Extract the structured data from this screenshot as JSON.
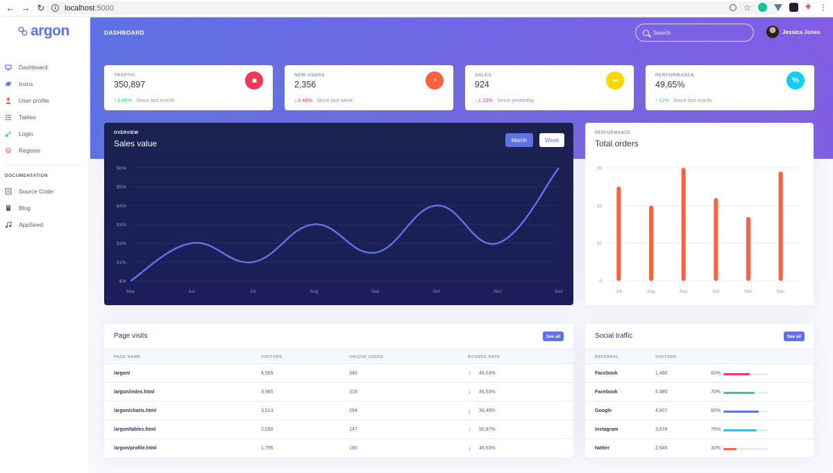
{
  "browser": {
    "url_host": "localhost",
    "url_port": ":5000"
  },
  "brand": {
    "name": "argon"
  },
  "sidebar": {
    "items": [
      {
        "label": "Dashboard",
        "icon": "tv-icon",
        "color": "#5e72e4"
      },
      {
        "label": "Icons",
        "icon": "planet-icon",
        "color": "#5e72e4"
      },
      {
        "label": "User profile",
        "icon": "user-icon",
        "color": "#fb6340"
      },
      {
        "label": "Tables",
        "icon": "bullet-list-icon",
        "color": "#f5365c"
      },
      {
        "label": "Login",
        "icon": "key-icon",
        "color": "#11cdef"
      },
      {
        "label": "Register",
        "icon": "circle-user-icon",
        "color": "#f3a4b5"
      }
    ],
    "doc_heading": "DOCUMENTATION",
    "doc_items": [
      {
        "label": "Source Code",
        "icon": "code-icon"
      },
      {
        "label": "Blog",
        "icon": "book-icon"
      },
      {
        "label": "AppSeed",
        "icon": "music-icon"
      }
    ]
  },
  "header": {
    "title": "DASHBOARD",
    "search_placeholder": "Search",
    "user_name": "Jessica Jones"
  },
  "stats": [
    {
      "title": "TRAFFIC",
      "value": "350,897",
      "change": "3.48%",
      "direction": "up",
      "since": "Since last month",
      "icon": "chart-bar-icon",
      "color": "#f5365c"
    },
    {
      "title": "NEW USERS",
      "value": "2,356",
      "change": "3.48%",
      "direction": "down",
      "since": "Since last week",
      "icon": "chart-pie-icon",
      "color": "#fb6340"
    },
    {
      "title": "SALES",
      "value": "924",
      "change": "1.10%",
      "direction": "down",
      "since": "Since yesterday",
      "icon": "users-icon",
      "color": "#ffd600"
    },
    {
      "title": "PERFORMANCE",
      "value": "49,65%",
      "change": "12%",
      "direction": "up",
      "since": "Since last month",
      "icon": "percent-icon",
      "color": "#11cdef"
    }
  ],
  "overview": {
    "subtitle": "OVERVIEW",
    "title": "Sales value",
    "btn_month": "Month",
    "btn_week": "Week"
  },
  "performance": {
    "subtitle": "PERFORMANCE",
    "title": "Total orders"
  },
  "chart_data": [
    {
      "type": "line",
      "title": "Sales value",
      "categories": [
        "May",
        "Jun",
        "Jul",
        "Aug",
        "Sep",
        "Oct",
        "Nov",
        "Dec"
      ],
      "series": [
        {
          "values": [
            0,
            20,
            10,
            30,
            15,
            40,
            20,
            60
          ]
        }
      ],
      "yticks": [
        "$0k",
        "$10k",
        "$20k",
        "$30k",
        "$40k",
        "$50k",
        "$60k"
      ],
      "ylim": [
        0,
        60
      ],
      "color": "#5e72e4"
    },
    {
      "type": "bar",
      "title": "Total orders",
      "categories": [
        "Jul",
        "Aug",
        "Sep",
        "Oct",
        "Nov",
        "Dec"
      ],
      "values": [
        25,
        20,
        30,
        22,
        17,
        29
      ],
      "yticks": [
        "0",
        "10",
        "20",
        "30"
      ],
      "ylim": [
        0,
        30
      ],
      "color": "#fb6340"
    }
  ],
  "page_visits": {
    "title": "Page visits",
    "see_all": "See all",
    "columns": [
      "PAGE NAME",
      "VISITORS",
      "UNIQUE USERS",
      "BOUNCE RATE"
    ],
    "rows": [
      {
        "page": "/argon/",
        "visitors": "4,569",
        "unique": "340",
        "bounce": "46,53%",
        "dir": "up"
      },
      {
        "page": "/argon/index.html",
        "visitors": "3,985",
        "unique": "319",
        "bounce": "46,53%",
        "dir": "down"
      },
      {
        "page": "/argon/charts.html",
        "visitors": "3,513",
        "unique": "294",
        "bounce": "36,49%",
        "dir": "down"
      },
      {
        "page": "/argon/tables.html",
        "visitors": "2,050",
        "unique": "147",
        "bounce": "50,87%",
        "dir": "up"
      },
      {
        "page": "/argon/profile.html",
        "visitors": "1,795",
        "unique": "190",
        "bounce": "46,53%",
        "dir": "down"
      }
    ]
  },
  "social_traffic": {
    "title": "Social traffic",
    "see_all": "See all",
    "columns": [
      "REFERRAL",
      "VISITORS"
    ],
    "rows": [
      {
        "ref": "Facebook",
        "visitors": "1,480",
        "pct": "60%",
        "value": 0.6,
        "color": "#f5365c"
      },
      {
        "ref": "Facebook",
        "visitors": "5,480",
        "pct": "70%",
        "value": 0.7,
        "color": "#2dce89"
      },
      {
        "ref": "Google",
        "visitors": "4,807",
        "pct": "80%",
        "value": 0.8,
        "color": "#5e72e4"
      },
      {
        "ref": "Instagram",
        "visitors": "3,678",
        "pct": "75%",
        "value": 0.75,
        "color": "#11cdef"
      },
      {
        "ref": "twitter",
        "visitors": "2,645",
        "pct": "30%",
        "value": 0.3,
        "color": "#fb6340"
      }
    ]
  }
}
